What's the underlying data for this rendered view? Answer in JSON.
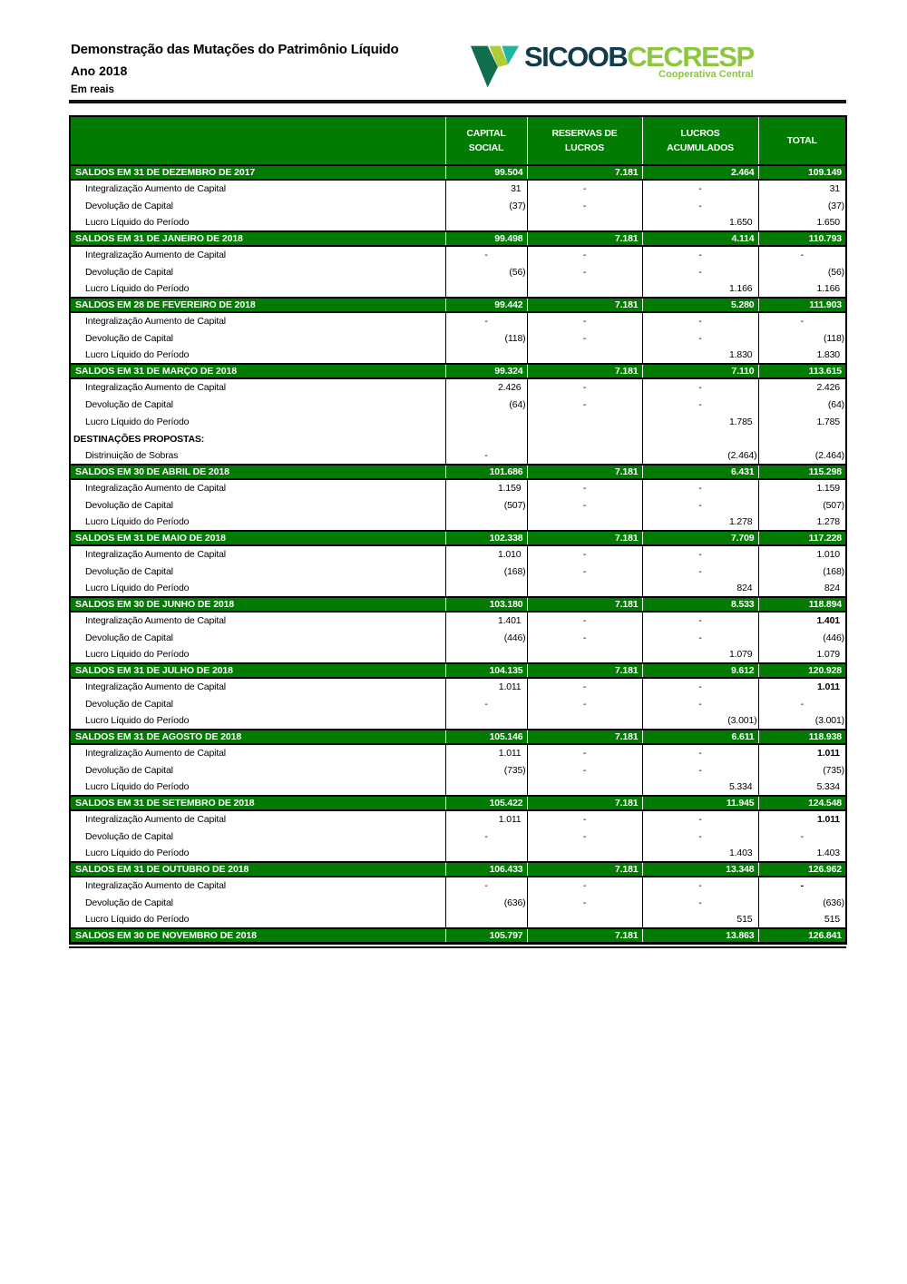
{
  "theme": {
    "green": "#027b02",
    "brand_navy": "#113c4b",
    "brand_lime": "#8dc63f",
    "logo_dark": "#0e6e4e",
    "logo_teal": "#1fb5a3",
    "logo_lime": "#afcb37"
  },
  "page": {
    "title": "Demonstração das Mutações do Patrimônio Líquido",
    "subtitle": "Ano 2018",
    "unit_note": "Em reais"
  },
  "logo": {
    "brand": "SICOOB",
    "suffix": "CECRESP",
    "tagline": "Cooperativa Central",
    "mark_icon": "sicoob-v-chevron"
  },
  "table": {
    "column_keys": [
      "capital-social",
      "reservas-de-lucros",
      "lucros-acumulados",
      "total"
    ],
    "columns": [
      {
        "l1": "CAPITAL",
        "l2": "SOCIAL"
      },
      {
        "l1": "RESERVAS DE",
        "l2": "LUCROS"
      },
      {
        "l1": "LUCROS",
        "l2": "ACUMULADOS"
      },
      {
        "l1": "TOTAL",
        "l2": ""
      }
    ],
    "rows": [
      {
        "type": "saldo",
        "label": "SALDOS EM 31 DE DEZEMBRO DE 2017",
        "values": [
          "99.504",
          "7.181",
          "2.464",
          "109.149"
        ]
      },
      {
        "type": "detail",
        "label": "Integralização Aumento de Capital",
        "values": [
          "31",
          "-",
          "-",
          "31"
        ]
      },
      {
        "type": "detail",
        "label": "Devolução de Capital",
        "values": [
          "(37)",
          "-",
          "-",
          "(37)"
        ]
      },
      {
        "type": "detail",
        "label": "Lucro Líquido do Período",
        "values": [
          "",
          "",
          "1.650",
          "1.650"
        ]
      },
      {
        "type": "saldo",
        "label": "SALDOS EM 31 DE JANEIRO DE 2018",
        "values": [
          "99.498",
          "7.181",
          "4.114",
          "110.793"
        ]
      },
      {
        "type": "detail",
        "label": "Integralização Aumento de Capital",
        "values": [
          "-",
          "-",
          "-",
          "-"
        ]
      },
      {
        "type": "detail",
        "label": "Devolução de Capital",
        "values": [
          "(56)",
          "-",
          "-",
          "(56)"
        ]
      },
      {
        "type": "detail",
        "label": "Lucro Líquido do Período",
        "values": [
          "",
          "",
          "1.166",
          "1.166"
        ]
      },
      {
        "type": "saldo",
        "label": "SALDOS EM 28 DE FEVEREIRO DE 2018",
        "values": [
          "99.442",
          "7.181",
          "5.280",
          "111.903"
        ]
      },
      {
        "type": "detail",
        "label": "Integralização Aumento de Capital",
        "values": [
          "-",
          "-",
          "-",
          "-"
        ]
      },
      {
        "type": "detail",
        "label": "Devolução de Capital",
        "values": [
          "(118)",
          "-",
          "-",
          "(118)"
        ]
      },
      {
        "type": "detail",
        "label": "Lucro Líquido do Período",
        "values": [
          "",
          "",
          "1.830",
          "1.830"
        ]
      },
      {
        "type": "saldo",
        "label": "SALDOS EM 31 DE MARÇO DE 2018",
        "values": [
          "99.324",
          "7.181",
          "7.110",
          "113.615"
        ]
      },
      {
        "type": "detail",
        "label": "Integralização Aumento de Capital",
        "values": [
          "2.426",
          "-",
          "-",
          "2.426"
        ]
      },
      {
        "type": "detail",
        "label": "Devolução de Capital",
        "values": [
          "(64)",
          "-",
          "-",
          "(64)"
        ]
      },
      {
        "type": "detail",
        "label": "Lucro Líquido do Período",
        "values": [
          "",
          "",
          "1.785",
          "1.785"
        ]
      },
      {
        "type": "section",
        "label": "DESTINAÇÕES PROPOSTAS:",
        "values": [
          "",
          "",
          "",
          ""
        ]
      },
      {
        "type": "detail",
        "label": "Distrinuição de Sobras",
        "values": [
          "-",
          "",
          "(2.464)",
          "(2.464)"
        ]
      },
      {
        "type": "saldo",
        "label": "SALDOS EM 30 DE ABRIL DE 2018",
        "values": [
          "101.686",
          "7.181",
          "6.431",
          "115.298"
        ]
      },
      {
        "type": "detail",
        "label": "Integralização Aumento de Capital",
        "values": [
          "1.159",
          "-",
          "-",
          "1.159"
        ]
      },
      {
        "type": "detail",
        "label": "Devolução de Capital",
        "values": [
          "(507)",
          "-",
          "-",
          "(507)"
        ]
      },
      {
        "type": "detail",
        "label": "Lucro Líquido do Período",
        "values": [
          "",
          "",
          "1.278",
          "1.278"
        ]
      },
      {
        "type": "saldo",
        "label": "SALDOS EM 31 DE MAIO DE 2018",
        "values": [
          "102.338",
          "7.181",
          "7.709",
          "117.228"
        ]
      },
      {
        "type": "detail",
        "label": "Integralização Aumento de Capital",
        "values": [
          "1.010",
          "-",
          "-",
          "1.010"
        ]
      },
      {
        "type": "detail",
        "label": "Devolução de Capital",
        "values": [
          "(168)",
          "-",
          "-",
          "(168)"
        ]
      },
      {
        "type": "detail",
        "label": "Lucro Líquido do Período",
        "values": [
          "",
          "",
          "824",
          "824"
        ]
      },
      {
        "type": "saldo",
        "label": "SALDOS EM 30 DE JUNHO DE 2018",
        "values": [
          "103.180",
          "7.181",
          "8.533",
          "118.894"
        ]
      },
      {
        "type": "detail",
        "label": "Integralização Aumento de Capital",
        "values": [
          "1.401",
          "-",
          "-",
          "1.401"
        ],
        "bold_total": true
      },
      {
        "type": "detail",
        "label": "Devolução de Capital",
        "values": [
          "(446)",
          "-",
          "-",
          "(446)"
        ]
      },
      {
        "type": "detail",
        "label": "Lucro Líquido do Período",
        "values": [
          "",
          "",
          "1.079",
          "1.079"
        ]
      },
      {
        "type": "saldo",
        "label": "SALDOS EM 31 DE JULHO DE 2018",
        "values": [
          "104.135",
          "7.181",
          "9.612",
          "120.928"
        ]
      },
      {
        "type": "detail",
        "label": "Integralização Aumento de Capital",
        "values": [
          "1.011",
          "-",
          "-",
          "1.011"
        ],
        "bold_total": true
      },
      {
        "type": "detail",
        "label": "Devolução de Capital",
        "values": [
          "-",
          "-",
          "-",
          "-"
        ]
      },
      {
        "type": "detail",
        "label": "Lucro Líquido do Período",
        "values": [
          "",
          "",
          "(3.001)",
          "(3.001)"
        ]
      },
      {
        "type": "saldo",
        "label": "SALDOS EM 31 DE AGOSTO DE 2018",
        "values": [
          "105.146",
          "7.181",
          "6.611",
          "118.938"
        ]
      },
      {
        "type": "detail",
        "label": "Integralização Aumento de Capital",
        "values": [
          "1.011",
          "-",
          "-",
          "1.011"
        ],
        "bold_total": true
      },
      {
        "type": "detail",
        "label": "Devolução de Capital",
        "values": [
          "(735)",
          "-",
          "-",
          "(735)"
        ]
      },
      {
        "type": "detail",
        "label": "Lucro Líquido do Período",
        "values": [
          "",
          "",
          "5.334",
          "5.334"
        ]
      },
      {
        "type": "saldo",
        "label": "SALDOS EM 31 DE SETEMBRO DE 2018",
        "values": [
          "105.422",
          "7.181",
          "11.945",
          "124.548"
        ]
      },
      {
        "type": "detail",
        "label": "Integralização Aumento de Capital",
        "values": [
          "1.011",
          "-",
          "-",
          "1.011"
        ],
        "bold_total": true
      },
      {
        "type": "detail",
        "label": "Devolução de Capital",
        "values": [
          "-",
          "-",
          "-",
          "-"
        ]
      },
      {
        "type": "detail",
        "label": "Lucro Líquido do Período",
        "values": [
          "",
          "",
          "1.403",
          "1.403"
        ]
      },
      {
        "type": "saldo",
        "label": "SALDOS EM 31 DE OUTUBRO DE 2018",
        "values": [
          "106.433",
          "7.181",
          "13.348",
          "126.962"
        ]
      },
      {
        "type": "detail",
        "label": "Integralização Aumento de Capital",
        "values": [
          "-",
          "-",
          "-",
          "-"
        ],
        "bold_total": true
      },
      {
        "type": "detail",
        "label": "Devolução de Capital",
        "values": [
          "(636)",
          "-",
          "-",
          "(636)"
        ]
      },
      {
        "type": "detail",
        "label": "Lucro Líquido do Período",
        "values": [
          "",
          "",
          "515",
          "515"
        ]
      },
      {
        "type": "saldo",
        "label": "SALDOS EM 30 DE NOVEMBRO DE 2018",
        "values": [
          "105.797",
          "7.181",
          "13.863",
          "126.841"
        ]
      }
    ]
  }
}
